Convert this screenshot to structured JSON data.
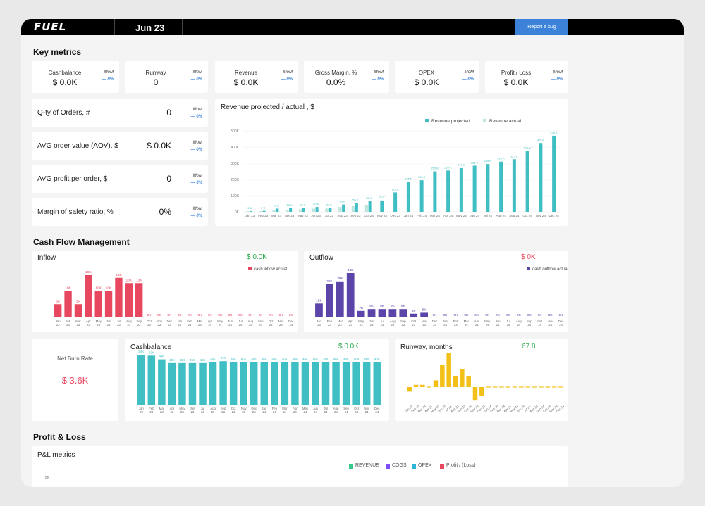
{
  "header": {
    "logo": "FUEL",
    "period": "Jun 23",
    "report_bug": "Report a bug"
  },
  "sections": {
    "key_metrics": "Key metrics",
    "cash_flow": "Cash Flow Management",
    "pnl": "Profit & Loss"
  },
  "key_metrics": [
    {
      "label": "Cashbalance",
      "value": "$ 0.0K",
      "mom_label": "MoM",
      "mom_value": "— 0%"
    },
    {
      "label": "Runway",
      "value": "0",
      "mom_label": "MoM",
      "mom_value": "— 0%"
    },
    {
      "label": "Revenue",
      "value": "$ 0.0K",
      "mom_label": "MoM",
      "mom_value": "— 0%"
    },
    {
      "label": "Gross Margin, %",
      "value": "0.0%",
      "mom_label": "MoM",
      "mom_value": "— 0%"
    },
    {
      "label": "OPEX",
      "value": "$ 0.0K",
      "mom_label": "MoM",
      "mom_value": "— 0%"
    },
    {
      "label": "Profit / Loss",
      "value": "$ 0.0K",
      "mom_label": "MoM",
      "mom_value": "— 0%"
    }
  ],
  "order_metrics": [
    {
      "label": "Q-ty of Orders, #",
      "value": "0",
      "mom_label": "MoM",
      "mom_value": "— 0%"
    },
    {
      "label": "AVG order value (AOV), $",
      "value": "$ 0.0K",
      "mom_label": "MoM",
      "mom_value": "— 0%"
    },
    {
      "label": "AVG profit per order, $",
      "value": "0",
      "mom_label": "MoM",
      "mom_value": "— 0%"
    },
    {
      "label": "Margin of safety ratio, %",
      "value": "0%",
      "mom_label": "MoM",
      "mom_value": "— 0%"
    }
  ],
  "inflow_summary": {
    "title": "Inflow",
    "total": "$ 0.0K"
  },
  "outflow_summary": {
    "title": "Outflow",
    "total": "$ 0K"
  },
  "net_burn": {
    "label": "Net Burn Rate",
    "value": "$ 3.6K"
  },
  "cashbalance_summary": {
    "title": "Cashbalance",
    "total": "$ 0.0K"
  },
  "runway_summary": {
    "title": "Runway, months",
    "total": "67.8"
  },
  "pnl": {
    "title": "P&L metrics",
    "legend": [
      "REVENUE",
      "COGS",
      "OPEX",
      "Profit / (Loss)"
    ],
    "ytick": "75K"
  },
  "colors": {
    "teal": "#3fbfc4",
    "teal_light": "#bfe6de",
    "red": "#e8485f",
    "purple": "#5b45a8",
    "yellow": "#f2c019",
    "green": "#2aa84a",
    "accent": "#3b82d8",
    "pnl": [
      "#34c98a",
      "#7c4dff",
      "#2bb5d6",
      "#e8485f"
    ]
  },
  "chart_data": [
    {
      "type": "bar",
      "title": "Revenue projected / actual , $",
      "categories": [
        "Jan 23",
        "Feb 23",
        "Mar 23",
        "Apr 23",
        "May 23",
        "Jun 23",
        "Jul 23",
        "Aug 23",
        "Sep 23",
        "Oct 23",
        "Nov 23",
        "Dec 23",
        "Jan 24",
        "Feb 24",
        "Mar 24",
        "Apr 24",
        "May 24",
        "Jun 24",
        "Jul 24",
        "Aug 24",
        "Sep 24",
        "Oct 24",
        "Nov 24",
        "Dec 24"
      ],
      "series": [
        {
          "name": "Revenue projected",
          "values": [
            5,
            6,
            20,
            22,
            23,
            30,
            23,
            45,
            55,
            65,
            70,
            120,
            185,
            195,
            250,
            255,
            270,
            285,
            295,
            310,
            325,
            375,
            425,
            470
          ],
          "labels": [
            "5 K",
            "6 K",
            "20 K",
            "22 K",
            "23 K",
            "30 K",
            "23 K",
            "45 K",
            "55 K",
            "65 K",
            "70 K",
            "120 K",
            "185 K",
            "195 K",
            "250 K",
            "255 K",
            "270 K",
            "285 K",
            "295 K",
            "310 K",
            "325 K",
            "375 K",
            "425 K",
            "470 K"
          ]
        },
        {
          "name": "Revenue actual",
          "values": [
            3,
            4,
            12,
            14,
            15,
            20,
            20,
            30,
            35,
            40,
            0,
            0,
            0,
            0,
            0,
            0,
            0,
            0,
            0,
            0,
            0,
            0,
            0,
            0
          ]
        }
      ],
      "yticks": [
        "0K",
        "100K",
        "200K",
        "300K",
        "400K",
        "500K"
      ],
      "ylim": [
        0,
        500
      ]
    },
    {
      "type": "bar",
      "title": "Inflow",
      "categories": [
        "Jan 23",
        "Feb 23",
        "Mar 23",
        "Apr 23",
        "May 23",
        "Jun 23",
        "Jul 23",
        "Aug 23",
        "Sep 23",
        "Oct 23",
        "Nov 23",
        "Dec 23",
        "Jan 24",
        "Feb 24",
        "Mar 24",
        "Apr 24",
        "May 24",
        "Jun 24",
        "Jul 24",
        "Aug 24",
        "Sep 24",
        "Oct 24",
        "Nov 24",
        "Dec 24"
      ],
      "series": [
        {
          "name": "cash inflow actual",
          "values": [
            5,
            10,
            5,
            16,
            10,
            10,
            15,
            13,
            13,
            0,
            0,
            0,
            0,
            0,
            0,
            0,
            0,
            0,
            0,
            0,
            0,
            0,
            0,
            0
          ],
          "labels": [
            "5K",
            "10K",
            "5K",
            "16K",
            "10K",
            "10K",
            "15K",
            "13K",
            "13K",
            "0K",
            "0K",
            "0K",
            "0K",
            "0K",
            "0K",
            "0K",
            "0K",
            "0K",
            "0K",
            "0K",
            "0K",
            "0K",
            "0K",
            "0K"
          ]
        }
      ],
      "ylim": [
        0,
        16
      ]
    },
    {
      "type": "bar",
      "title": "Outflow",
      "categories": [
        "Jan 23",
        "Feb 23",
        "Mar 23",
        "Apr 23",
        "May 23",
        "Jun 23",
        "Jul 23",
        "Aug 23",
        "Sep 23",
        "Oct 23",
        "Nov 23",
        "Dec 23",
        "Jan 24",
        "Feb 24",
        "Mar 24",
        "Apr 24",
        "May 24",
        "Jun 24",
        "Jul 24",
        "Aug 24",
        "Sep 24",
        "Oct 24",
        "Nov 24",
        "Dec 24"
      ],
      "series": [
        {
          "name": "cash outflow actual",
          "values": [
            15,
            36,
            39,
            48,
            7,
            9,
            9,
            9,
            9,
            4,
            5,
            0,
            0,
            0,
            0,
            0,
            0,
            0,
            0,
            0,
            0,
            0,
            0,
            0
          ],
          "labels": [
            "15K",
            "36K",
            "39K",
            "48K",
            "7K",
            "9K",
            "9K",
            "9K",
            "9K",
            "4K",
            "5K",
            "0K",
            "0K",
            "0K",
            "0K",
            "0K",
            "0K",
            "0K",
            "0K",
            "0K",
            "0K",
            "0K",
            "0K",
            "0K"
          ]
        }
      ],
      "ylim": [
        0,
        48
      ]
    },
    {
      "type": "bar",
      "title": "Cashbalance",
      "categories": [
        "Jan 23",
        "Feb 23",
        "Mar 23",
        "Apr 23",
        "May 23",
        "Jun 23",
        "Jul 23",
        "Aug 23",
        "Sep 23",
        "Oct 23",
        "Nov 23",
        "Dec 23",
        "Jan 24",
        "Feb 24",
        "Mar 24",
        "Apr 24",
        "May 24",
        "Jun 24",
        "Jul 24",
        "Aug 24",
        "Sep 24",
        "Oct 24",
        "Nov 24",
        "Dec 24"
      ],
      "series": [
        {
          "name": "Cashbalance",
          "values": [
            54,
            53,
            49,
            45,
            45,
            45,
            45,
            46,
            47,
            46,
            46,
            46,
            46,
            46,
            46,
            46,
            46,
            46,
            46,
            46,
            46,
            46,
            46,
            46
          ],
          "labels": [
            "54K",
            "53K",
            "49K",
            "45K",
            "45K",
            "45K",
            "45K",
            "46K",
            "47K",
            "46K",
            "46K",
            "46K",
            "46K",
            "46K",
            "46K",
            "46K",
            "46K",
            "46K",
            "46K",
            "46K",
            "46K",
            "46K",
            "46K",
            "46K"
          ]
        }
      ],
      "ylim": [
        0,
        54
      ]
    },
    {
      "type": "bar",
      "title": "Runway, months",
      "categories": [
        "Jan 23",
        "Feb 23",
        "Mar 23",
        "Apr 23",
        "May 23",
        "Jun 23",
        "Jul 23",
        "Aug 23",
        "Sep 23",
        "Oct 23",
        "Nov 23",
        "Dec 23",
        "Jan 24",
        "Feb 24",
        "Mar 24",
        "Apr 24",
        "May 24",
        "Jun 24",
        "Jul 24",
        "Aug 24",
        "Sep 24",
        "Oct 24",
        "Nov 24",
        "Dec 24"
      ],
      "series": [
        {
          "name": "Runway",
          "values": [
            -2,
            1,
            1,
            0,
            3,
            10,
            15,
            5,
            8,
            5,
            -6,
            -4,
            0,
            0,
            0,
            0,
            0,
            0,
            0,
            0,
            0,
            0,
            0,
            0
          ]
        }
      ],
      "ylim": [
        -8,
        16
      ]
    },
    {
      "type": "bar",
      "title": "P&L metrics",
      "series": [
        {
          "name": "REVENUE",
          "values": []
        },
        {
          "name": "COGS",
          "values": []
        },
        {
          "name": "OPEX",
          "values": []
        },
        {
          "name": "Profit / (Loss)",
          "values": []
        }
      ]
    }
  ]
}
